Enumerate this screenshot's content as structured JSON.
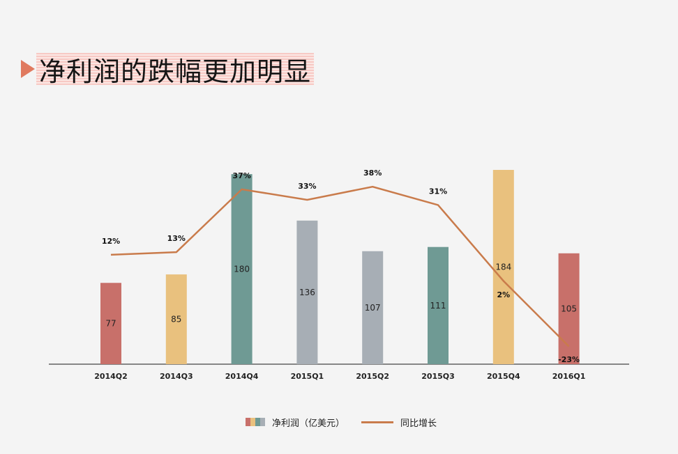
{
  "title": "净利润的跌幅更加明显",
  "chart_data": {
    "type": "bar",
    "categories": [
      "2014Q2",
      "2014Q3",
      "2014Q4",
      "2015Q1",
      "2015Q2",
      "2015Q3",
      "2015Q4",
      "2016Q1"
    ],
    "series": [
      {
        "name": "净利润（亿美元）",
        "type": "bar",
        "values": [
          77,
          85,
          180,
          136,
          107,
          111,
          184,
          105
        ],
        "colors": [
          "#c8706a",
          "#e9c17e",
          "#6f9a94",
          "#a7aeb5",
          "#a7aeb5",
          "#6f9a94",
          "#e9c17e",
          "#c8706a"
        ]
      },
      {
        "name": "同比增长",
        "type": "line",
        "values": [
          12,
          13,
          37,
          33,
          38,
          31,
          2,
          -23
        ],
        "labels": [
          "12%",
          "13%",
          "37%",
          "33%",
          "38%",
          "31%",
          "2%",
          "-23%"
        ],
        "color": "#c97b4b"
      }
    ],
    "ylim": [
      0,
      184
    ]
  },
  "legend": {
    "bar_label": "净利润（亿美元）",
    "line_label": "同比增长",
    "swatch_colors": [
      "#c8706a",
      "#e9c17e",
      "#6f9a94",
      "#a7aeb5"
    ]
  }
}
